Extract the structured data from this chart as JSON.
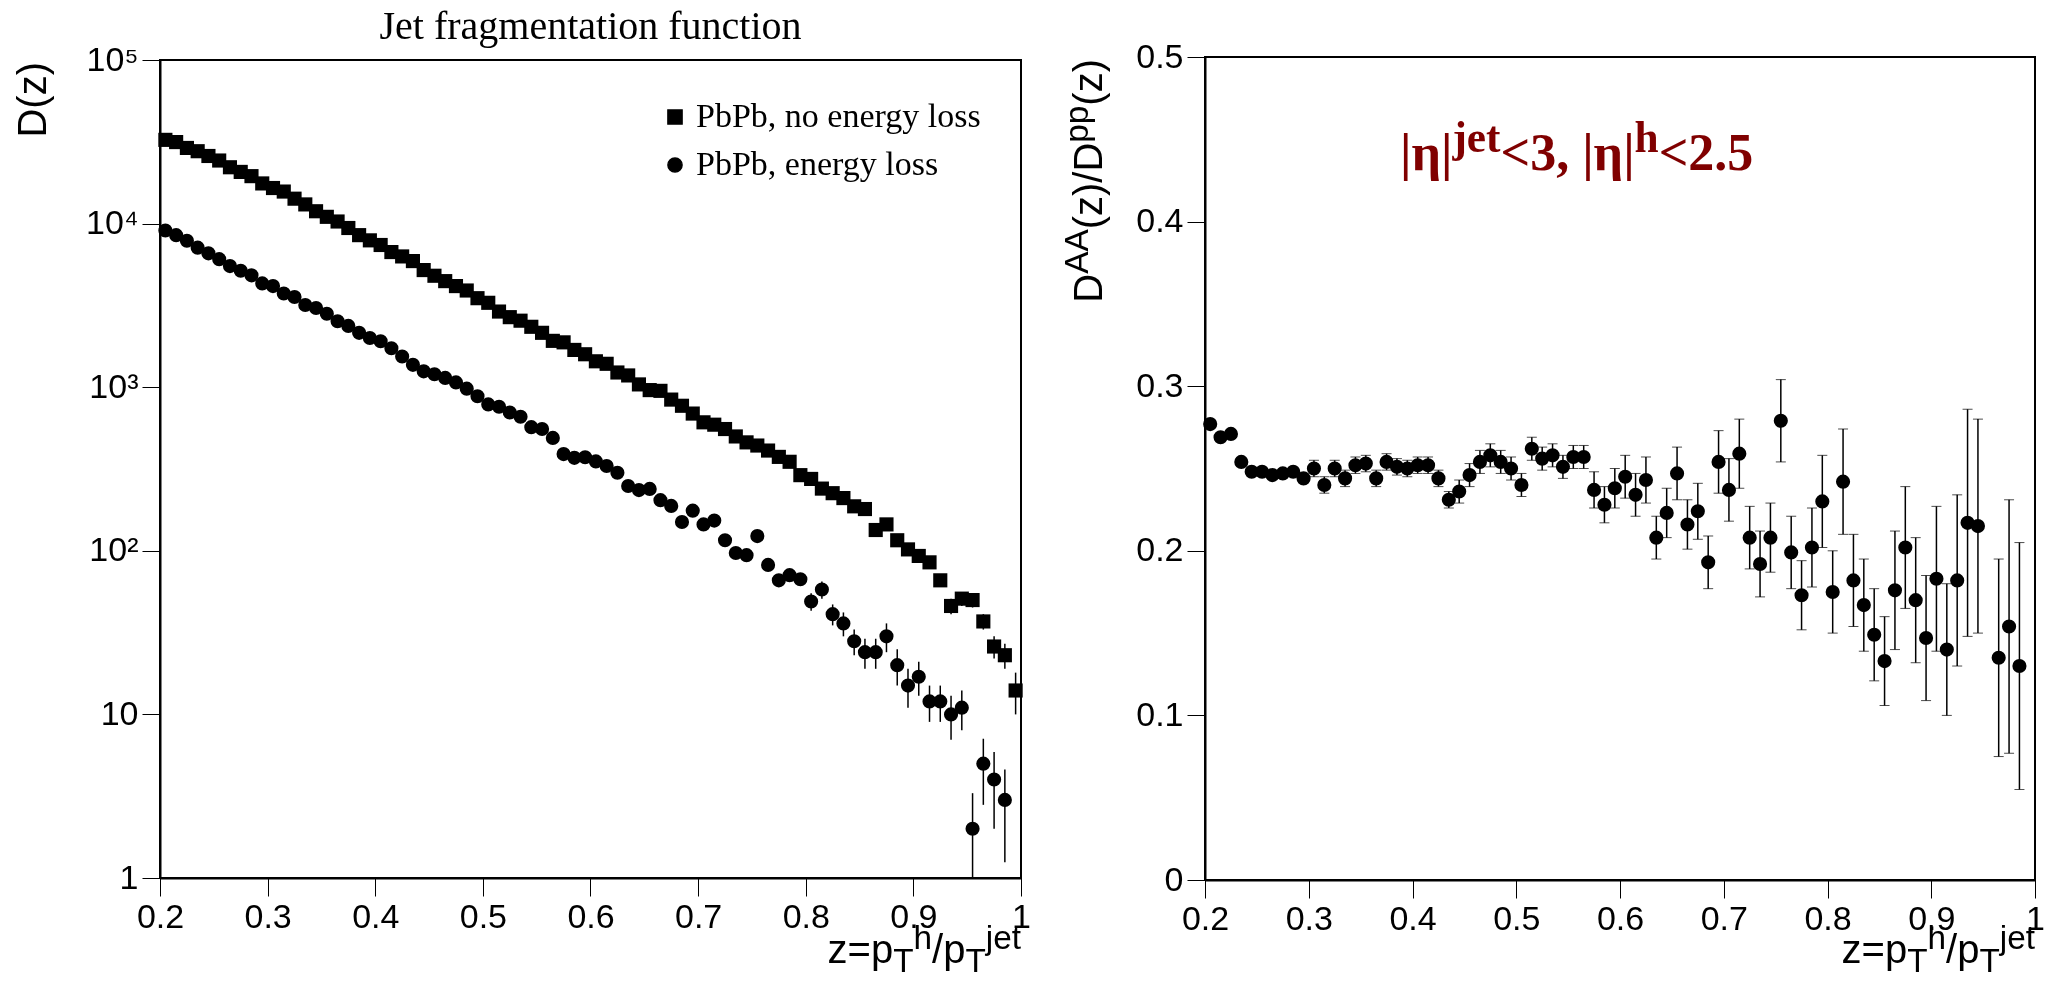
{
  "chart_data": [
    {
      "type": "scatter",
      "title": "Jet fragmentation function",
      "xlabel": "z=p$_{T}$$^{h}$/p$_{T}$$^{jet}$",
      "ylabel": "D(z)",
      "log": true,
      "legend": "top right",
      "x": [
        0.205,
        0.215,
        0.225,
        0.235,
        0.245,
        0.255,
        0.265,
        0.275,
        0.285,
        0.295,
        0.305,
        0.315,
        0.325,
        0.335,
        0.345,
        0.355,
        0.365,
        0.375,
        0.385,
        0.395,
        0.405,
        0.415,
        0.425,
        0.435,
        0.445,
        0.455,
        0.465,
        0.475,
        0.485,
        0.495,
        0.505,
        0.515,
        0.525,
        0.535,
        0.545,
        0.555,
        0.565,
        0.575,
        0.585,
        0.595,
        0.605,
        0.615,
        0.625,
        0.635,
        0.645,
        0.655,
        0.665,
        0.675,
        0.685,
        0.695,
        0.705,
        0.715,
        0.725,
        0.735,
        0.745,
        0.755,
        0.765,
        0.775,
        0.785,
        0.795,
        0.805,
        0.815,
        0.825,
        0.835,
        0.845,
        0.855,
        0.865,
        0.875,
        0.885,
        0.895,
        0.905,
        0.915,
        0.925,
        0.935,
        0.945,
        0.955,
        0.965,
        0.975,
        0.985,
        0.995
      ],
      "series": [
        {
          "name": "PbPb, no energy loss",
          "color": "#000000",
          "marker": "square",
          "values": [
            32500,
            31500,
            29000,
            27700,
            25900,
            24300,
            22100,
            20700,
            19500,
            17600,
            16500,
            15700,
            14200,
            13100,
            11900,
            11000,
            10300,
            9400,
            8500,
            7900,
            7400,
            6700,
            6300,
            5900,
            5200,
            4800,
            4450,
            4150,
            3900,
            3500,
            3280,
            2900,
            2680,
            2550,
            2340,
            2150,
            1920,
            1880,
            1690,
            1590,
            1440,
            1390,
            1230,
            1180,
            1040,
            960,
            950,
            840,
            770,
            690,
            610,
            590,
            555,
            500,
            460,
            440,
            410,
            375,
            350,
            290,
            275,
            240,
            225,
            210,
            187,
            180,
            134,
            145,
            116,
            102,
            93,
            85,
            66,
            46,
            51,
            50,
            37,
            26,
            23,
            14
          ],
          "errors": [
            null,
            null,
            null,
            null,
            null,
            null,
            null,
            null,
            null,
            null,
            null,
            null,
            null,
            null,
            null,
            null,
            null,
            null,
            null,
            null,
            null,
            null,
            null,
            null,
            null,
            null,
            null,
            null,
            null,
            null,
            null,
            null,
            null,
            null,
            null,
            null,
            null,
            null,
            null,
            null,
            null,
            null,
            null,
            null,
            null,
            null,
            null,
            null,
            null,
            null,
            null,
            null,
            null,
            null,
            null,
            null,
            null,
            null,
            null,
            null,
            null,
            null,
            null,
            null,
            null,
            null,
            null,
            null,
            null,
            null,
            null,
            null,
            null,
            5,
            5,
            5,
            4,
            4,
            4,
            4
          ]
        },
        {
          "name": "PbPb, energy loss",
          "color": "#000000",
          "marker": "circle",
          "x": [
            0.205,
            0.215,
            0.225,
            0.235,
            0.245,
            0.255,
            0.265,
            0.275,
            0.285,
            0.295,
            0.305,
            0.315,
            0.325,
            0.335,
            0.345,
            0.355,
            0.365,
            0.375,
            0.385,
            0.395,
            0.405,
            0.415,
            0.425,
            0.435,
            0.445,
            0.455,
            0.465,
            0.475,
            0.485,
            0.495,
            0.505,
            0.515,
            0.525,
            0.535,
            0.545,
            0.555,
            0.565,
            0.575,
            0.585,
            0.595,
            0.605,
            0.615,
            0.625,
            0.635,
            0.645,
            0.655,
            0.665,
            0.675,
            0.685,
            0.695,
            0.705,
            0.715,
            0.725,
            0.735,
            0.745,
            0.755,
            0.765,
            0.775,
            0.785,
            0.795,
            0.805,
            0.815,
            0.825,
            0.835,
            0.845,
            0.855,
            0.865,
            0.875,
            0.885,
            0.895,
            0.905,
            0.915,
            0.925,
            0.935,
            0.945,
            0.955,
            0.965,
            0.975,
            0.985
          ],
          "values": [
            9080,
            8500,
            7850,
            7130,
            6580,
            6060,
            5500,
            5150,
            4830,
            4310,
            4150,
            3740,
            3560,
            3180,
            3050,
            2810,
            2530,
            2370,
            2150,
            2000,
            1910,
            1730,
            1540,
            1370,
            1250,
            1200,
            1140,
            1070,
            980,
            880,
            785,
            760,
            700,
            660,
            570,
            555,
            490,
            390,
            370,
            373,
            352,
            330,
            300,
            249,
            235,
            239,
            204,
            188,
            150,
            176,
            145,
            153,
            116,
            97,
            94,
            123,
            82,
            66,
            71,
            67,
            49,
            58,
            41,
            36,
            28,
            24,
            24,
            30,
            20,
            15,
            17,
            12,
            12,
            10,
            11,
            2.0,
            5.0,
            4.0,
            3.0
          ],
          "errors": [
            null,
            null,
            null,
            null,
            null,
            null,
            null,
            null,
            null,
            null,
            null,
            null,
            null,
            null,
            null,
            null,
            null,
            null,
            null,
            null,
            null,
            null,
            null,
            null,
            null,
            null,
            null,
            null,
            null,
            null,
            null,
            null,
            null,
            null,
            null,
            null,
            null,
            null,
            null,
            null,
            null,
            null,
            null,
            null,
            null,
            null,
            null,
            null,
            null,
            null,
            null,
            null,
            null,
            null,
            null,
            null,
            6,
            5,
            6,
            6,
            6,
            7,
            6,
            6,
            5,
            5,
            5,
            6,
            5,
            4,
            4,
            3,
            3,
            3,
            3,
            [
              1,
              3.3
            ],
            [
              2.8,
              7.1
            ],
            [
              2.0,
              5.9
            ],
            [
              1.25,
              4.6
            ]
          ]
        }
      ],
      "xlim": [
        0.2,
        1
      ],
      "xticks": [
        0.2,
        0.3,
        0.4,
        0.5,
        0.6,
        0.7,
        0.8,
        0.9,
        1
      ],
      "ylim": [
        1,
        100000
      ],
      "yticks": [
        1,
        10,
        {
          "value": 100,
          "label": "10²"
        },
        {
          "value": 1000,
          "label": "10³"
        },
        {
          "value": 10000,
          "label": "10⁴"
        },
        {
          "value": 100000,
          "label": "10⁵"
        }
      ]
    },
    {
      "type": "scatter",
      "xlabel": "z=p$_{T}$$^{h}$/p$_{T}$$^{jet}$",
      "ylabel": "D$^{AA}$(z)/D$^{pp}$(z)",
      "marker": "circle",
      "annotations": [
        "|η|$^{jet}$<3,  |η|$^{h}$<2.5"
      ],
      "x": [
        0.205,
        0.215,
        0.225,
        0.235,
        0.245,
        0.255,
        0.265,
        0.275,
        0.285,
        0.295,
        0.305,
        0.315,
        0.325,
        0.335,
        0.345,
        0.355,
        0.365,
        0.375,
        0.385,
        0.395,
        0.405,
        0.415,
        0.425,
        0.435,
        0.445,
        0.455,
        0.465,
        0.475,
        0.485,
        0.495,
        0.505,
        0.515,
        0.525,
        0.535,
        0.545,
        0.555,
        0.565,
        0.575,
        0.585,
        0.595,
        0.605,
        0.615,
        0.625,
        0.635,
        0.645,
        0.655,
        0.665,
        0.675,
        0.685,
        0.695,
        0.705,
        0.715,
        0.725,
        0.735,
        0.745,
        0.755,
        0.765,
        0.775,
        0.785,
        0.795,
        0.805,
        0.815,
        0.825,
        0.835,
        0.845,
        0.855,
        0.865,
        0.875,
        0.885,
        0.895,
        0.905,
        0.915,
        0.925,
        0.935,
        0.945,
        0.965,
        0.975,
        0.985
      ],
      "series": [
        {
          "color": "#000000",
          "values": [
            0.277,
            0.269,
            0.271,
            0.254,
            0.248,
            0.248,
            0.246,
            0.247,
            0.248,
            0.244,
            0.25,
            0.24,
            0.25,
            0.244,
            0.252,
            0.253,
            0.244,
            0.254,
            0.251,
            0.25,
            0.252,
            0.252,
            0.244,
            0.231,
            0.236,
            0.246,
            0.254,
            0.258,
            0.254,
            0.25,
            0.24,
            0.262,
            0.256,
            0.258,
            0.251,
            0.257,
            0.257,
            0.237,
            0.228,
            0.238,
            0.245,
            0.234,
            0.243,
            0.208,
            0.223,
            0.247,
            0.216,
            0.224,
            0.193,
            0.254,
            0.237,
            0.259,
            0.208,
            0.192,
            0.208,
            0.279,
            0.199,
            0.173,
            0.202,
            0.23,
            0.175,
            0.242,
            0.182,
            0.167,
            0.149,
            0.133,
            0.176,
            0.202,
            0.17,
            0.147,
            0.183,
            0.14,
            0.182,
            0.217,
            0.215,
            0.135,
            0.154,
            0.13
          ],
          "errors": [
            0.002,
            0.002,
            0.002,
            0.002,
            0.002,
            0.002,
            0.002,
            0.002,
            0.002,
            0.002,
            0.005,
            0.005,
            0.005,
            0.005,
            0.005,
            0.005,
            0.005,
            0.005,
            0.005,
            0.005,
            0.005,
            0.005,
            0.005,
            0.005,
            0.007,
            0.007,
            0.007,
            0.007,
            0.007,
            0.007,
            0.007,
            0.007,
            0.007,
            0.007,
            0.007,
            0.007,
            0.007,
            0.011,
            0.011,
            0.012,
            0.013,
            0.013,
            0.014,
            0.013,
            0.015,
            0.016,
            0.015,
            0.017,
            0.016,
            0.019,
            0.019,
            0.021,
            0.019,
            0.02,
            0.021,
            0.025,
            0.022,
            0.021,
            0.024,
            0.028,
            0.025,
            0.032,
            0.028,
            0.028,
            0.028,
            0.027,
            0.036,
            0.037,
            0.038,
            0.038,
            0.044,
            0.04,
            0.052,
            0.069,
            0.065,
            0.06,
            0.077,
            0.075
          ]
        }
      ],
      "xlim": [
        0.2,
        1
      ],
      "xticks": [
        0.2,
        0.3,
        0.4,
        0.5,
        0.6,
        0.7,
        0.8,
        0.9,
        1
      ],
      "ylim": [
        0,
        0.5
      ],
      "yticks": [
        0,
        0.1,
        0.2,
        0.3,
        0.4,
        0.5
      ]
    }
  ]
}
